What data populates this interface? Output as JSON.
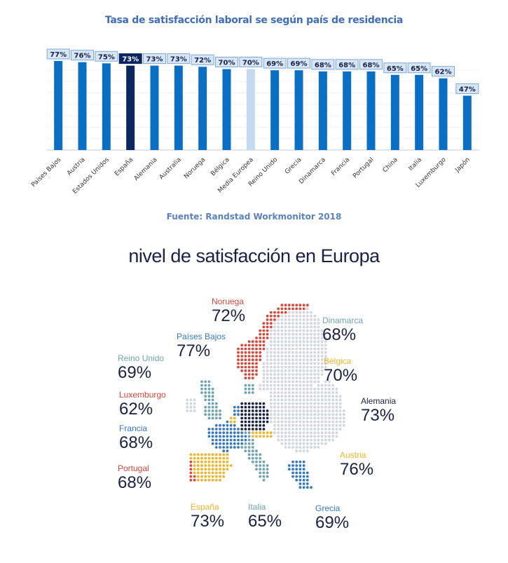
{
  "chart_data": [
    {
      "type": "bar",
      "title": "Tasa de satisfacción laboral se según país de residencia",
      "source": "Fuente: Randstad Workmonitor 2018",
      "xlabel": "",
      "ylabel": "",
      "ylim": [
        0,
        80
      ],
      "grid": true,
      "legend": "none",
      "categories": [
        "Países Bajos",
        "Austria",
        "Estados Unidos",
        "España",
        "Alemania",
        "Australia",
        "Noruega",
        "Bélgica",
        "Media Europea",
        "Reino Unido",
        "Grecia",
        "Dinamarca",
        "Francia",
        "Portugal",
        "China",
        "Italia",
        "Luxemburgo",
        "Japón"
      ],
      "values": [
        77,
        76,
        75,
        73,
        73,
        73,
        72,
        70,
        70,
        69,
        69,
        68,
        68,
        68,
        65,
        65,
        62,
        47
      ],
      "data_labels": [
        "77%",
        "76%",
        "75%",
        "73%",
        "73%",
        "73%",
        "72%",
        "70%",
        "70%",
        "69%",
        "69%",
        "68%",
        "68%",
        "68%",
        "65%",
        "65%",
        "62%",
        "47%"
      ],
      "highlight": {
        "España": "#0b2560",
        "Media Europea": "#c5d9f0"
      },
      "colors": {
        "bar": "#0a6fc2",
        "label_bg": "#d6e6f6",
        "label_border": "#7fa9d6",
        "highlight_label_bg": "#0b2560"
      }
    },
    {
      "type": "map",
      "title": "nivel de satisfacción en Europa",
      "entries": [
        {
          "name": "Noruega",
          "value": "72%",
          "color": "#d9463a"
        },
        {
          "name": "Dinamarca",
          "value": "68%",
          "color": "#6fa3b0"
        },
        {
          "name": "Países Bajos",
          "value": "77%",
          "color": "#3478c2"
        },
        {
          "name": "Bélgica",
          "value": "70%",
          "color": "#f0b429"
        },
        {
          "name": "Reino Unido",
          "value": "69%",
          "color": "#6fa3b0"
        },
        {
          "name": "Alemania",
          "value": "73%",
          "color": "#1b2142"
        },
        {
          "name": "Luxemburgo",
          "value": "62%",
          "color": "#d9463a"
        },
        {
          "name": "Francia",
          "value": "68%",
          "color": "#3478c2"
        },
        {
          "name": "Austria",
          "value": "76%",
          "color": "#f0b429"
        },
        {
          "name": "Portugal",
          "value": "68%",
          "color": "#d9463a"
        },
        {
          "name": "España",
          "value": "73%",
          "color": "#f0b429"
        },
        {
          "name": "Italia",
          "value": "65%",
          "color": "#6fa3b0"
        },
        {
          "name": "Grecia",
          "value": "69%",
          "color": "#3478c2"
        }
      ],
      "other_color": "#d3d5dc"
    }
  ]
}
